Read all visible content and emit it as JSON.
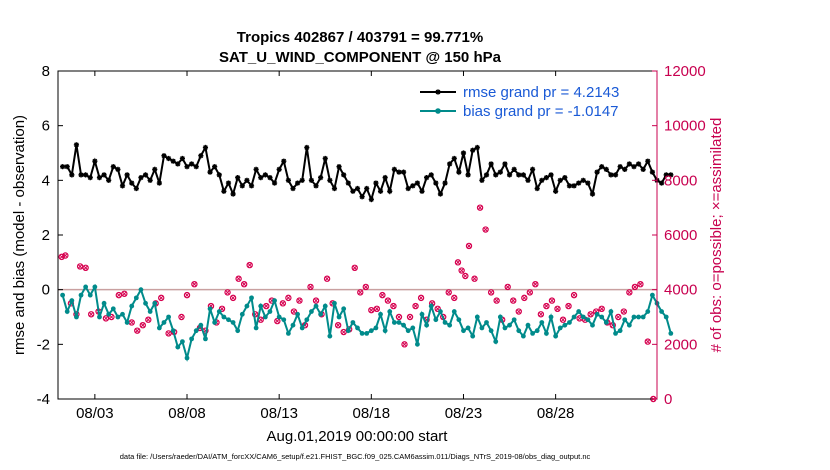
{
  "chart_data": {
    "type": "line",
    "title": "Tropics 402867 / 403791 = 99.771%",
    "subtitle": "SAT_U_WIND_COMPONENT @ 150 hPa",
    "xlabel": "Aug.01,2019 00:00:00 start",
    "ylabel": "rmse and bias (model - observation)",
    "y2label": "# of obs: o=possible; ×=assimilated",
    "footnote": "data file: /Users/raeder/DAI/ATM_forcXX/CAM6_setup/f.e21.FHIST_BGC.f09_025.CAM6assim.011/Diags_NTrS_2019-08/obs_diag_output.nc",
    "xlim": [
      1,
      33.5
    ],
    "ylim": [
      -4,
      8
    ],
    "y2lim": [
      0,
      12000
    ],
    "xticks": [
      3,
      8,
      13,
      18,
      23,
      28
    ],
    "xtick_labels": [
      "08/03",
      "08/08",
      "08/13",
      "08/18",
      "08/23",
      "08/28"
    ],
    "yticks": [
      -4,
      -2,
      0,
      2,
      4,
      6,
      8
    ],
    "y2ticks": [
      0,
      2000,
      4000,
      6000,
      8000,
      10000,
      12000
    ],
    "x_start": 1.25,
    "x_step": 0.25,
    "series": [
      {
        "name": "rmse grand pr = 4.2143",
        "color": "#000000",
        "values": [
          4.5,
          4.5,
          4.2,
          5.3,
          4.2,
          4.2,
          4.1,
          4.7,
          4.1,
          4.2,
          4.0,
          4.5,
          4.4,
          3.8,
          4.2,
          3.9,
          3.7,
          4.1,
          4.2,
          4.0,
          4.4,
          3.9,
          4.9,
          4.8,
          4.7,
          4.6,
          4.8,
          4.5,
          4.6,
          4.5,
          4.9,
          5.2,
          4.3,
          4.5,
          4.2,
          3.6,
          3.9,
          3.5,
          4.1,
          3.8,
          4.0,
          3.8,
          4.4,
          4.1,
          4.2,
          4.1,
          3.9,
          4.4,
          4.7,
          4.0,
          3.7,
          3.9,
          4.0,
          5.2,
          4.0,
          3.8,
          4.1,
          4.8,
          4.0,
          3.7,
          4.5,
          4.2,
          3.9,
          3.6,
          3.7,
          3.4,
          3.7,
          3.3,
          3.9,
          3.6,
          4.1,
          3.6,
          4.4,
          4.3,
          4.3,
          3.7,
          3.8,
          3.9,
          3.6,
          4.1,
          4.2,
          3.9,
          3.5,
          3.9,
          4.6,
          4.8,
          4.3,
          5.0,
          4.2,
          5.1,
          5.2,
          4.0,
          4.2,
          4.6,
          4.2,
          4.3,
          4.6,
          4.2,
          4.4,
          4.2,
          4.2,
          4.0,
          4.4,
          3.7,
          4.0,
          4.1,
          4.2,
          3.6,
          4.0,
          4.1,
          3.8,
          3.8,
          3.9,
          4.0,
          3.9,
          3.5,
          4.3,
          4.5,
          4.4,
          4.2,
          4.2,
          4.5,
          4.4,
          4.6,
          4.5,
          4.6,
          4.4,
          4.7,
          4.3,
          4.0,
          3.9,
          4.2,
          4.2
        ]
      },
      {
        "name": "bias grand pr = -1.0147",
        "color": "#008b8b",
        "values": [
          -0.2,
          -0.8,
          -0.4,
          -1.0,
          -0.2,
          0.1,
          -0.2,
          0.1,
          -1.0,
          -0.5,
          -0.9,
          -0.7,
          -1.0,
          -0.9,
          -1.2,
          -0.6,
          -0.3,
          0.0,
          -0.5,
          -0.8,
          -0.5,
          -1.4,
          -1.2,
          -1.0,
          -1.5,
          -2.1,
          -1.9,
          -2.5,
          -1.8,
          -1.5,
          -1.3,
          -1.8,
          -0.7,
          -1.2,
          -0.8,
          -1.0,
          -1.1,
          -1.2,
          -1.5,
          -0.9,
          -0.6,
          -0.3,
          -1.4,
          -0.6,
          -1.0,
          -0.8,
          -0.4,
          -1.0,
          -1.1,
          -1.6,
          -1.3,
          -0.9,
          -1.4,
          -1.1,
          -0.8,
          -0.6,
          -0.9,
          -0.6,
          -1.7,
          -0.5,
          -1.0,
          -0.7,
          -1.5,
          -1.2,
          -1.4,
          -1.6,
          -1.6,
          -1.5,
          -1.4,
          -0.9,
          -1.5,
          -0.8,
          -1.2,
          -1.2,
          -1.3,
          -1.5,
          -1.4,
          -2.0,
          -0.9,
          -1.3,
          -0.6,
          -1.1,
          -0.8,
          -1.2,
          -1.3,
          -0.8,
          -1.1,
          -1.5,
          -1.4,
          -1.7,
          -1.0,
          -1.4,
          -1.2,
          -1.5,
          -1.9,
          -1.0,
          -1.4,
          -1.3,
          -1.1,
          -1.5,
          -1.7,
          -1.3,
          -1.6,
          -1.5,
          -1.2,
          -1.6,
          -1.0,
          -1.7,
          -1.4,
          -1.3,
          -1.2,
          -1.0,
          -0.8,
          -1.0,
          -1.1,
          -1.3,
          -0.9,
          -1.0,
          -1.2,
          -0.8,
          -1.6,
          -1.5,
          -1.1,
          -1.3,
          -1.0,
          -1.0,
          -1.0,
          -0.8,
          -0.2,
          -0.5,
          -0.8,
          -1.0,
          -1.6
        ]
      }
    ],
    "obs_count": {
      "name": "# of obs",
      "color": "#d6004f",
      "x": [
        1.2,
        1.4,
        1.7,
        2.0,
        2.2,
        2.5,
        2.8,
        3.2,
        3.6,
        3.9,
        4.3,
        4.6,
        5.0,
        5.3,
        5.6,
        5.9,
        6.3,
        6.6,
        7.0,
        7.3,
        7.7,
        8.0,
        8.4,
        8.7,
        9.0,
        9.3,
        9.6,
        9.9,
        10.2,
        10.5,
        10.8,
        11.1,
        11.4,
        11.7,
        12.0,
        12.3,
        12.6,
        12.9,
        13.2,
        13.5,
        13.8,
        14.1,
        14.4,
        14.7,
        15.0,
        15.3,
        15.6,
        15.9,
        16.2,
        16.5,
        16.8,
        17.1,
        17.4,
        17.7,
        18.0,
        18.3,
        18.6,
        18.9,
        19.2,
        19.5,
        19.8,
        20.1,
        20.4,
        20.7,
        21.0,
        21.3,
        21.6,
        21.9,
        22.2,
        22.5,
        22.7,
        22.9,
        23.1,
        23.3,
        23.6,
        23.9,
        24.2,
        24.5,
        24.8,
        25.1,
        25.4,
        25.7,
        26.0,
        26.3,
        26.6,
        26.9,
        27.2,
        27.5,
        27.8,
        28.1,
        28.4,
        28.7,
        29.0,
        29.3,
        29.6,
        29.9,
        30.2,
        30.5,
        30.8,
        31.1,
        31.4,
        31.7,
        32.0,
        32.3,
        32.6,
        33.0,
        33.3
      ],
      "values": [
        5200,
        5250,
        3500,
        3100,
        4850,
        4800,
        3100,
        3200,
        2950,
        3000,
        3800,
        3850,
        2800,
        2500,
        2700,
        2900,
        3500,
        3700,
        2400,
        2450,
        3000,
        3800,
        4200,
        2600,
        2500,
        3400,
        2800,
        3300,
        3900,
        3700,
        4400,
        4200,
        4900,
        3100,
        2900,
        3400,
        3600,
        2850,
        3500,
        3700,
        3200,
        3600,
        2700,
        4100,
        3600,
        3100,
        4400,
        3500,
        2700,
        2450,
        2550,
        4800,
        3900,
        4100,
        3250,
        3300,
        3800,
        3600,
        3400,
        3000,
        2000,
        3000,
        3400,
        3700,
        2900,
        3500,
        3300,
        3000,
        3900,
        3700,
        5000,
        4700,
        4500,
        5600,
        4400,
        7000,
        6200,
        3900,
        3600,
        2900,
        4100,
        3600,
        3200,
        3700,
        3900,
        4200,
        3100,
        3400,
        3600,
        3300,
        2900,
        3400,
        3800,
        2950,
        2900,
        3100,
        3200,
        3300,
        2800,
        2700,
        3000,
        3200,
        3900,
        4100,
        4200,
        2100,
        0
      ]
    }
  }
}
